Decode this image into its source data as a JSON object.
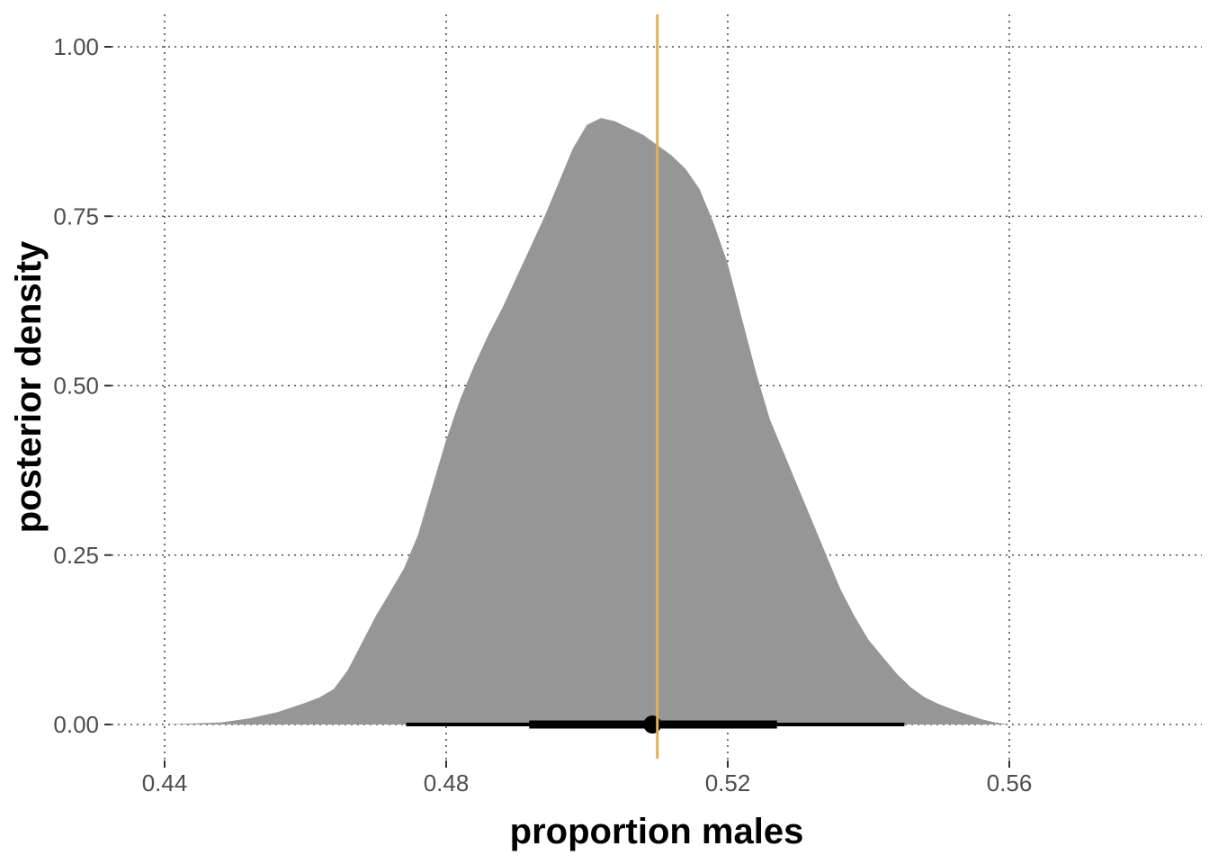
{
  "chart_data": {
    "type": "area",
    "xlabel": "proportion males",
    "ylabel": "posterior density",
    "xlim": [
      0.44,
      0.58
    ],
    "ylim": [
      0,
      1.0
    ],
    "x_ticks": [
      0.44,
      0.48,
      0.52,
      0.56
    ],
    "x_tick_labels": [
      "0.44",
      "0.48",
      "0.52",
      "0.56"
    ],
    "y_ticks": [
      0.0,
      0.25,
      0.5,
      0.75,
      1.0
    ],
    "y_tick_labels": [
      "0.00",
      "0.25",
      "0.50",
      "0.75",
      "1.00"
    ],
    "grid": true,
    "grid_style": "dotted",
    "density": {
      "x": [
        0.44,
        0.448,
        0.452,
        0.456,
        0.46,
        0.462,
        0.464,
        0.466,
        0.468,
        0.47,
        0.472,
        0.474,
        0.476,
        0.478,
        0.48,
        0.482,
        0.484,
        0.486,
        0.488,
        0.49,
        0.492,
        0.494,
        0.496,
        0.498,
        0.5,
        0.502,
        0.504,
        0.506,
        0.508,
        0.51,
        0.512,
        0.514,
        0.516,
        0.518,
        0.52,
        0.522,
        0.524,
        0.526,
        0.528,
        0.53,
        0.532,
        0.534,
        0.536,
        0.538,
        0.54,
        0.542,
        0.544,
        0.546,
        0.548,
        0.55,
        0.552,
        0.554,
        0.556,
        0.558,
        0.56,
        0.564,
        0.568,
        0.572,
        0.576,
        0.58
      ],
      "y": [
        0.0,
        0.003,
        0.009,
        0.018,
        0.032,
        0.04,
        0.052,
        0.08,
        0.12,
        0.16,
        0.195,
        0.23,
        0.28,
        0.35,
        0.42,
        0.48,
        0.53,
        0.575,
        0.615,
        0.66,
        0.705,
        0.75,
        0.8,
        0.85,
        0.885,
        0.895,
        0.89,
        0.88,
        0.87,
        0.855,
        0.84,
        0.82,
        0.79,
        0.74,
        0.68,
        0.6,
        0.52,
        0.45,
        0.4,
        0.35,
        0.3,
        0.25,
        0.2,
        0.16,
        0.125,
        0.1,
        0.075,
        0.055,
        0.04,
        0.03,
        0.022,
        0.015,
        0.008,
        0.003,
        0.0,
        0.0,
        0.0,
        0.0,
        0.0,
        0.0
      ],
      "fill": "#969696"
    },
    "point_estimate": 0.5093,
    "interval_outer": [
      0.4743,
      0.5451
    ],
    "interval_inner": [
      0.4918,
      0.527
    ],
    "interval_color": "#000000",
    "reference_line": {
      "x": 0.51,
      "color": "#e6ad5a"
    }
  }
}
